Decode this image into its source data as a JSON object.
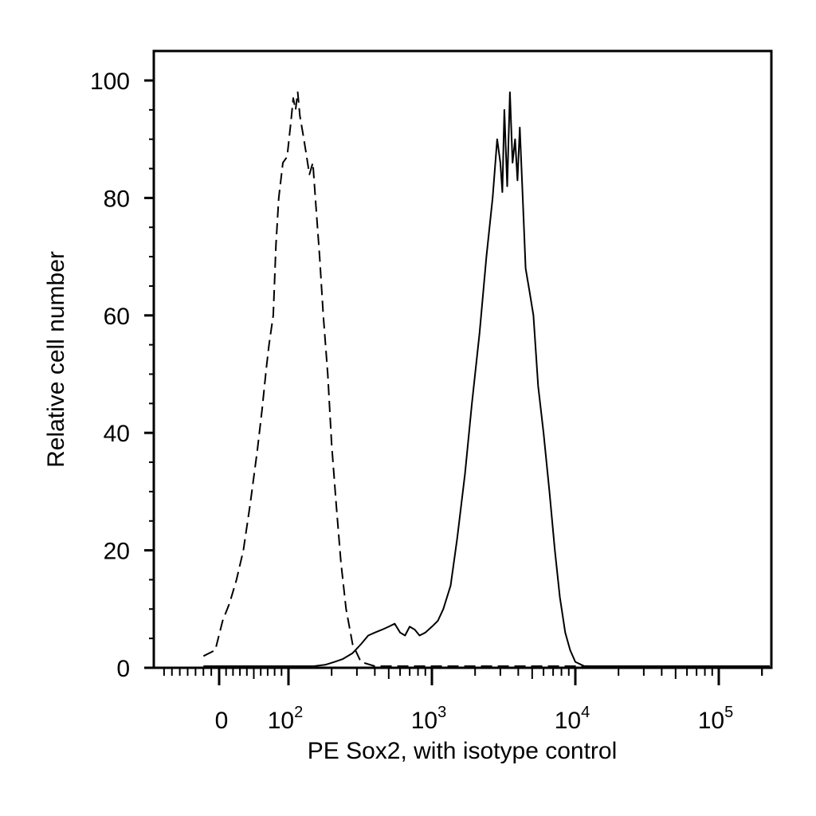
{
  "chart_data": {
    "type": "line",
    "title": "",
    "xlabel": "PE Sox2, with isotype control",
    "ylabel": "Relative cell number",
    "x_scale": "biexponential",
    "ylim": [
      0,
      100
    ],
    "y_ticks": [
      0,
      20,
      40,
      60,
      80,
      100
    ],
    "x_tick_labels": [
      {
        "value": 0,
        "base": "0",
        "exp": ""
      },
      {
        "value": 100,
        "base": "10",
        "exp": "2"
      },
      {
        "value": 1000,
        "base": "10",
        "exp": "3"
      },
      {
        "value": 10000,
        "base": "10",
        "exp": "4"
      },
      {
        "value": 100000,
        "base": "10",
        "exp": "5"
      }
    ],
    "grid": false,
    "legend": "none",
    "series": [
      {
        "style": "dashed",
        "color": "#000000",
        "points": [
          [
            -20,
            2
          ],
          [
            -5,
            3
          ],
          [
            5,
            8
          ],
          [
            15,
            11
          ],
          [
            25,
            15
          ],
          [
            35,
            20
          ],
          [
            45,
            28
          ],
          [
            55,
            37
          ],
          [
            62,
            44
          ],
          [
            68,
            51
          ],
          [
            72,
            55
          ],
          [
            78,
            60
          ],
          [
            82,
            72
          ],
          [
            86,
            80
          ],
          [
            92,
            86
          ],
          [
            98,
            87
          ],
          [
            104,
            93
          ],
          [
            108,
            97
          ],
          [
            112,
            95
          ],
          [
            116,
            98
          ],
          [
            120,
            94
          ],
          [
            126,
            91
          ],
          [
            132,
            88
          ],
          [
            140,
            84
          ],
          [
            148,
            86
          ],
          [
            156,
            78
          ],
          [
            165,
            70
          ],
          [
            175,
            60
          ],
          [
            188,
            50
          ],
          [
            200,
            38
          ],
          [
            215,
            28
          ],
          [
            232,
            18
          ],
          [
            252,
            10
          ],
          [
            280,
            4
          ],
          [
            320,
            1
          ],
          [
            400,
            0
          ],
          [
            1000,
            0
          ],
          [
            10000,
            0
          ],
          [
            15000,
            0
          ]
        ]
      },
      {
        "style": "solid",
        "color": "#000000",
        "points": [
          [
            -20,
            0
          ],
          [
            60,
            0
          ],
          [
            120,
            0
          ],
          [
            150,
            0.2
          ],
          [
            180,
            0.5
          ],
          [
            210,
            1
          ],
          [
            240,
            1.5
          ],
          [
            280,
            2.5
          ],
          [
            320,
            4
          ],
          [
            360,
            5.5
          ],
          [
            400,
            6
          ],
          [
            450,
            6.5
          ],
          [
            500,
            7
          ],
          [
            550,
            7.5
          ],
          [
            600,
            6
          ],
          [
            650,
            5.5
          ],
          [
            700,
            7
          ],
          [
            760,
            6.5
          ],
          [
            820,
            5.5
          ],
          [
            900,
            6
          ],
          [
            1000,
            7
          ],
          [
            1100,
            8
          ],
          [
            1200,
            10
          ],
          [
            1350,
            14
          ],
          [
            1500,
            22
          ],
          [
            1700,
            33
          ],
          [
            1900,
            45
          ],
          [
            2150,
            57
          ],
          [
            2400,
            70
          ],
          [
            2650,
            80
          ],
          [
            2850,
            90
          ],
          [
            3000,
            86
          ],
          [
            3100,
            81
          ],
          [
            3200,
            95
          ],
          [
            3350,
            82
          ],
          [
            3500,
            98
          ],
          [
            3650,
            86
          ],
          [
            3800,
            90
          ],
          [
            3950,
            83
          ],
          [
            4100,
            92
          ],
          [
            4300,
            80
          ],
          [
            4500,
            68
          ],
          [
            4800,
            64
          ],
          [
            5100,
            60
          ],
          [
            5500,
            48
          ],
          [
            6000,
            40
          ],
          [
            6600,
            30
          ],
          [
            7200,
            20
          ],
          [
            7800,
            12
          ],
          [
            8500,
            6
          ],
          [
            9200,
            3
          ],
          [
            10000,
            1
          ],
          [
            11500,
            0.3
          ],
          [
            13000,
            0
          ],
          [
            18000,
            0
          ],
          [
            100000,
            0
          ],
          [
            250000,
            0
          ]
        ]
      }
    ]
  }
}
